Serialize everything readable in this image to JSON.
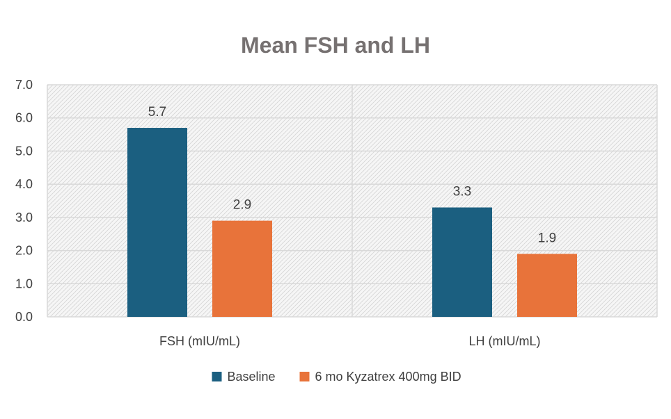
{
  "chart_data": {
    "type": "bar",
    "title": "Mean FSH and LH",
    "categories": [
      "FSH (mIU/mL)",
      "LH (mIU/mL)"
    ],
    "series": [
      {
        "name": "Baseline",
        "values": [
          5.7,
          3.3
        ],
        "labels": [
          "5.7",
          "3.3"
        ],
        "color": "#1b5f80"
      },
      {
        "name": "6 mo Kyzatrex 400mg BID",
        "values": [
          2.9,
          1.9
        ],
        "labels": [
          "2.9",
          "1.9"
        ],
        "color": "#e8733a"
      }
    ],
    "ylim": [
      0,
      7
    ],
    "yticks": [
      "0.0",
      "1.0",
      "2.0",
      "3.0",
      "4.0",
      "5.0",
      "6.0",
      "7.0"
    ],
    "grid": true,
    "legend_position": "bottom"
  }
}
